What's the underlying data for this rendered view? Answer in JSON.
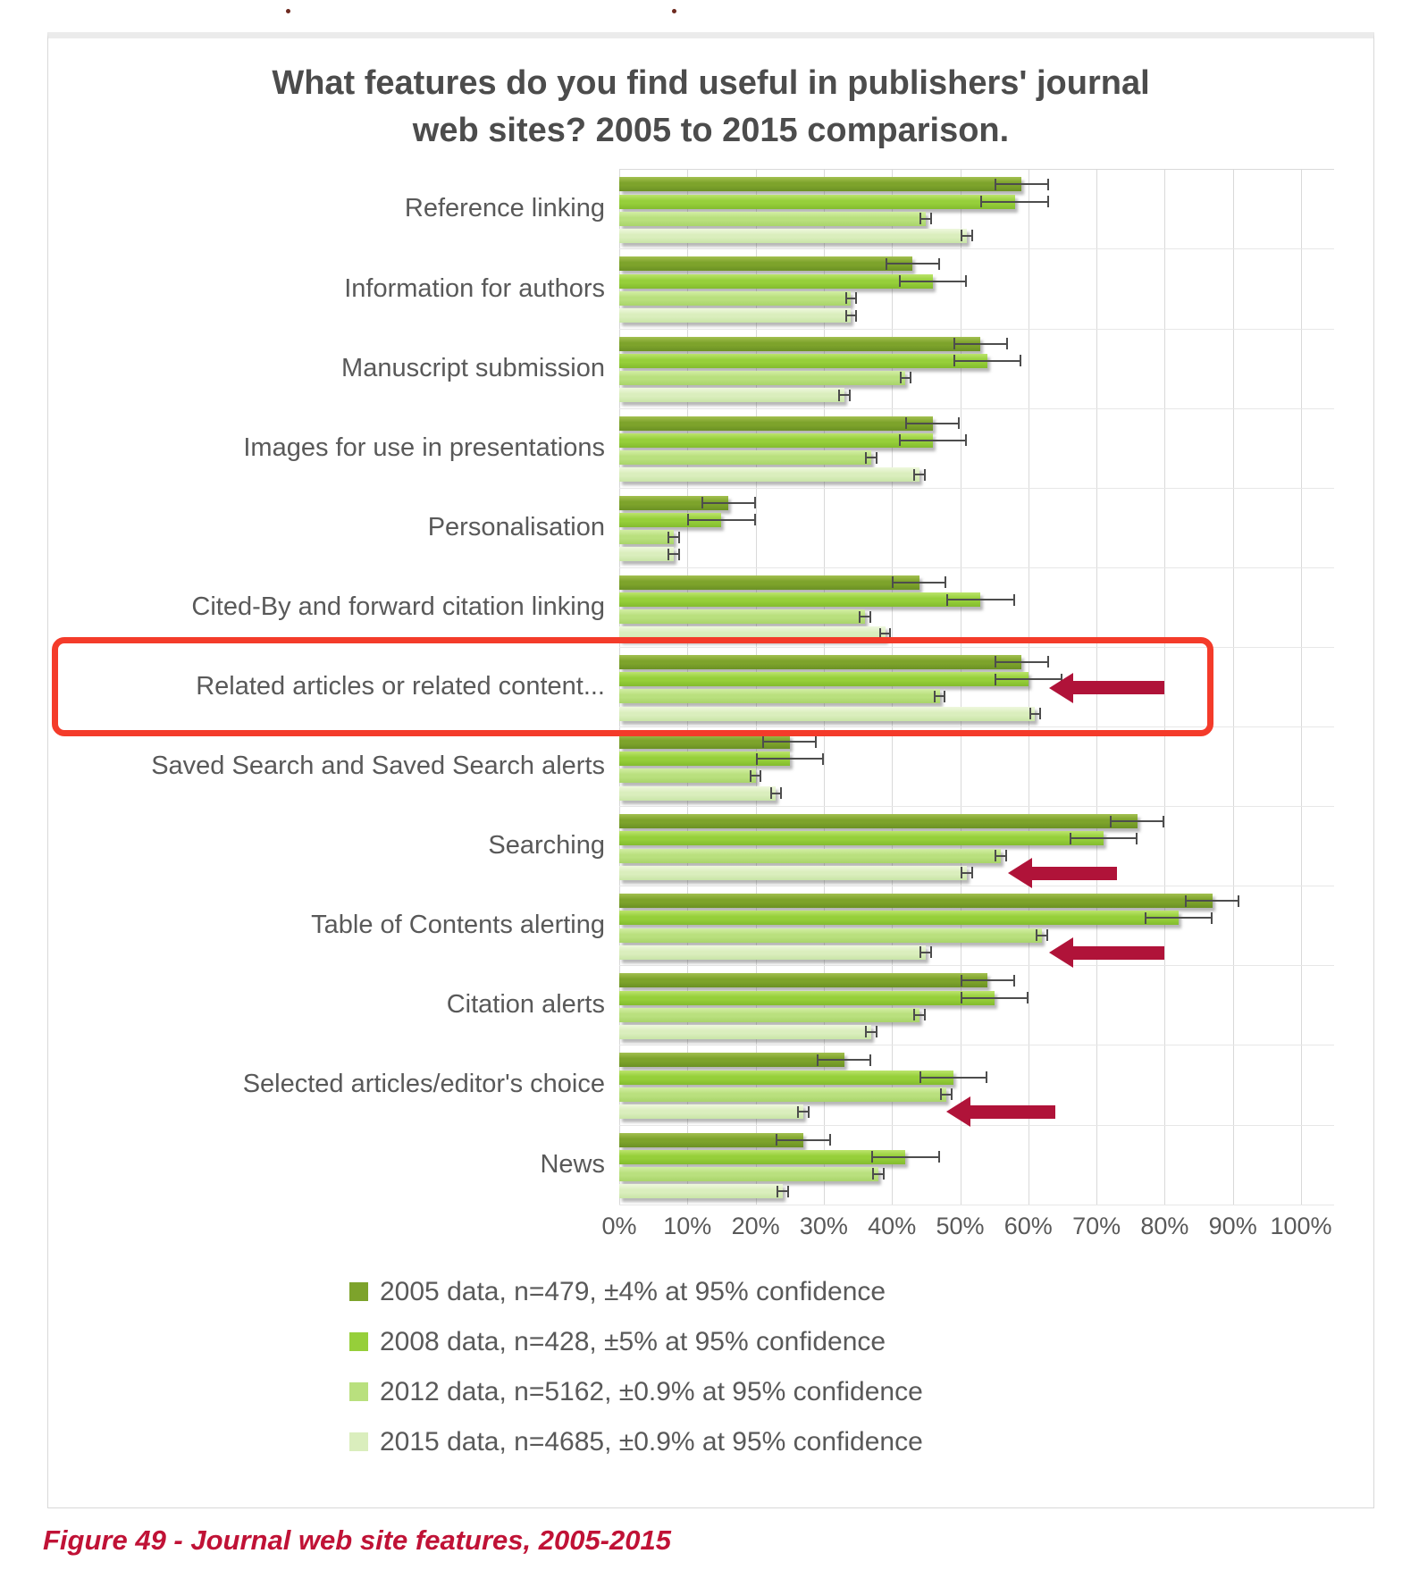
{
  "figure": {
    "caption": "Figure 49 - Journal web site features, 2005-2015"
  },
  "chart_data": {
    "type": "bar",
    "orientation": "horizontal",
    "title": "What features do you find useful in publishers' journal web sites? 2005 to 2015 comparison.",
    "title_line1": "What features do you find useful in publishers' journal",
    "title_line2": "web sites? 2005 to 2015 comparison.",
    "xlabel": "",
    "ylabel": "",
    "xlim": [
      0,
      100
    ],
    "x_ticks": [
      "0%",
      "10%",
      "20%",
      "30%",
      "40%",
      "50%",
      "60%",
      "70%",
      "80%",
      "90%",
      "100%"
    ],
    "grid": "vertical",
    "legend_position": "bottom",
    "error_bars": "95% confidence interval per series",
    "categories": [
      "Reference linking",
      "Information for authors",
      "Manuscript submission",
      "Images for use in  presentations",
      "Personalisation",
      "Cited-By and forward citation linking",
      "Related articles or related content...",
      "Saved Search and Saved Search alerts",
      "Searching",
      "Table of Contents alerting",
      "Citation alerts",
      "Selected articles/editor's choice",
      "News"
    ],
    "series": [
      {
        "name": "2005 data, n=479, ±4% at 95% confidence",
        "year": "2005",
        "n": 479,
        "margin_pct": 4,
        "color": "#7da32b",
        "values": [
          59,
          43,
          53,
          46,
          16,
          44,
          59,
          25,
          76,
          87,
          54,
          33,
          27
        ]
      },
      {
        "name": "2008 data, n=428, ±5% at 95% confidence",
        "year": "2008",
        "n": 428,
        "margin_pct": 5,
        "color": "#96cf3a",
        "values": [
          58,
          46,
          54,
          46,
          15,
          53,
          60,
          25,
          71,
          82,
          55,
          49,
          42
        ]
      },
      {
        "name": "2012 data, n=5162, ±0.9% at 95% confidence",
        "year": "2012",
        "n": 5162,
        "margin_pct": 0.9,
        "color": "#b9e07e",
        "values": [
          45,
          34,
          42,
          37,
          8,
          36,
          47,
          20,
          56,
          62,
          44,
          48,
          38
        ]
      },
      {
        "name": "2015 data, n=4685, ±0.9% at 95% confidence",
        "year": "2015",
        "n": 4685,
        "margin_pct": 0.9,
        "color": "#daeebd",
        "values": [
          51,
          34,
          33,
          44,
          8,
          39,
          61,
          23,
          51,
          45,
          37,
          27,
          24
        ]
      }
    ],
    "annotations": {
      "highlight_box": {
        "category_index": 6,
        "category": "Related articles or related content...",
        "color": "#f43b2a"
      },
      "arrows": [
        {
          "category_index": 6,
          "tip_pct": 63,
          "tail_pct": 80,
          "align": "center",
          "direction": "left",
          "color": "#b01339"
        },
        {
          "category_index": 8,
          "tip_pct": 57,
          "tail_pct": 73,
          "align": "last-bar",
          "direction": "left",
          "color": "#b01339"
        },
        {
          "category_index": 9,
          "tip_pct": 63,
          "tail_pct": 80,
          "align": "last-bar",
          "direction": "left",
          "color": "#b01339"
        },
        {
          "category_index": 11,
          "tip_pct": 48,
          "tail_pct": 64,
          "align": "last-bar",
          "direction": "left",
          "color": "#b01339"
        }
      ]
    }
  }
}
